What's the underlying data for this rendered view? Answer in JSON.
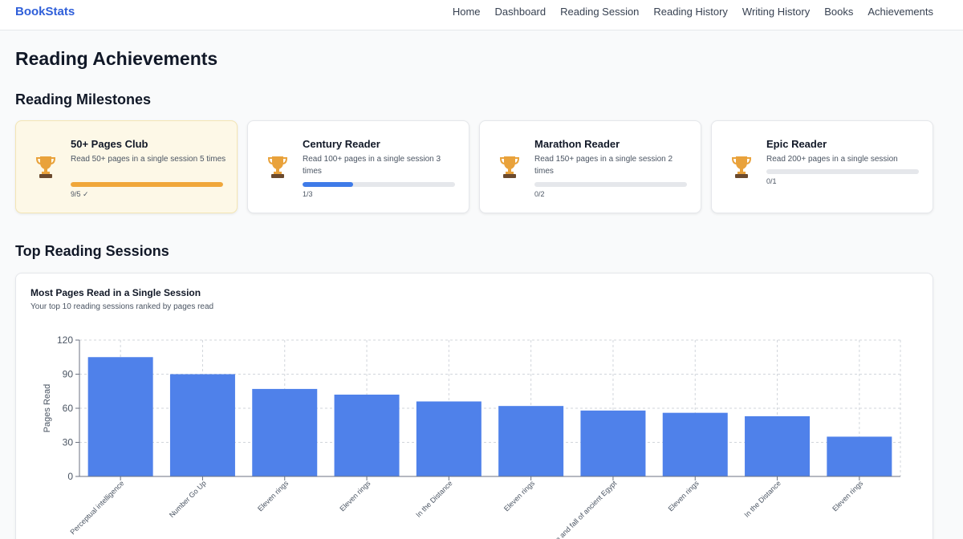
{
  "nav": {
    "brand": "BookStats",
    "links": [
      "Home",
      "Dashboard",
      "Reading Session",
      "Reading History",
      "Writing History",
      "Books",
      "Achievements"
    ]
  },
  "page": {
    "title": "Reading Achievements",
    "milestones_title": "Reading Milestones",
    "sessions_title": "Top Reading Sessions"
  },
  "milestones": [
    {
      "title": "50+ Pages Club",
      "description": "Read 50+ pages in a single session 5 times",
      "progress_text": "9/5 ✓",
      "progress": 1.0,
      "achieved": true,
      "bar_color": "#f0a73a",
      "icon": "trophy-icon"
    },
    {
      "title": "Century Reader",
      "description": "Read 100+ pages in a single session 3 times",
      "progress_text": "1/3",
      "progress": 0.3333,
      "achieved": false,
      "bar_color": "#3f7be8",
      "icon": "trophy-icon"
    },
    {
      "title": "Marathon Reader",
      "description": "Read 150+ pages in a single session 2 times",
      "progress_text": "0/2",
      "progress": 0,
      "achieved": false,
      "bar_color": "#3f7be8",
      "icon": "trophy-icon"
    },
    {
      "title": "Epic Reader",
      "description": "Read 200+ pages in a single session",
      "progress_text": "0/1",
      "progress": 0,
      "achieved": false,
      "bar_color": "#3f7be8",
      "icon": "trophy-icon"
    }
  ],
  "chart_card": {
    "title": "Most Pages Read in a Single Session",
    "subtitle": "Your top 10 reading sessions ranked by pages read"
  },
  "chart_data": {
    "type": "bar",
    "categories": [
      "Perceptual intelligence",
      "Number Go Up",
      "Eleven rings",
      "Eleven rings",
      "In the Distance",
      "Eleven rings",
      "Rise and fall of ancient Egypt",
      "Eleven rings",
      "In the Distance",
      "Eleven rings"
    ],
    "values": [
      105,
      90,
      77,
      72,
      66,
      62,
      58,
      56,
      53,
      35
    ],
    "ylabel": "Pages Read",
    "yticks": [
      0,
      30,
      60,
      90,
      120
    ],
    "ylim": [
      0,
      120
    ],
    "bar_color": "#4f81ea",
    "grid": true
  },
  "colors": {
    "brand": "#2f5fd9",
    "achieved_bg": "#fdf8e7",
    "trophy_gold": "#e9a23b",
    "trophy_base": "#6b4a2e"
  }
}
